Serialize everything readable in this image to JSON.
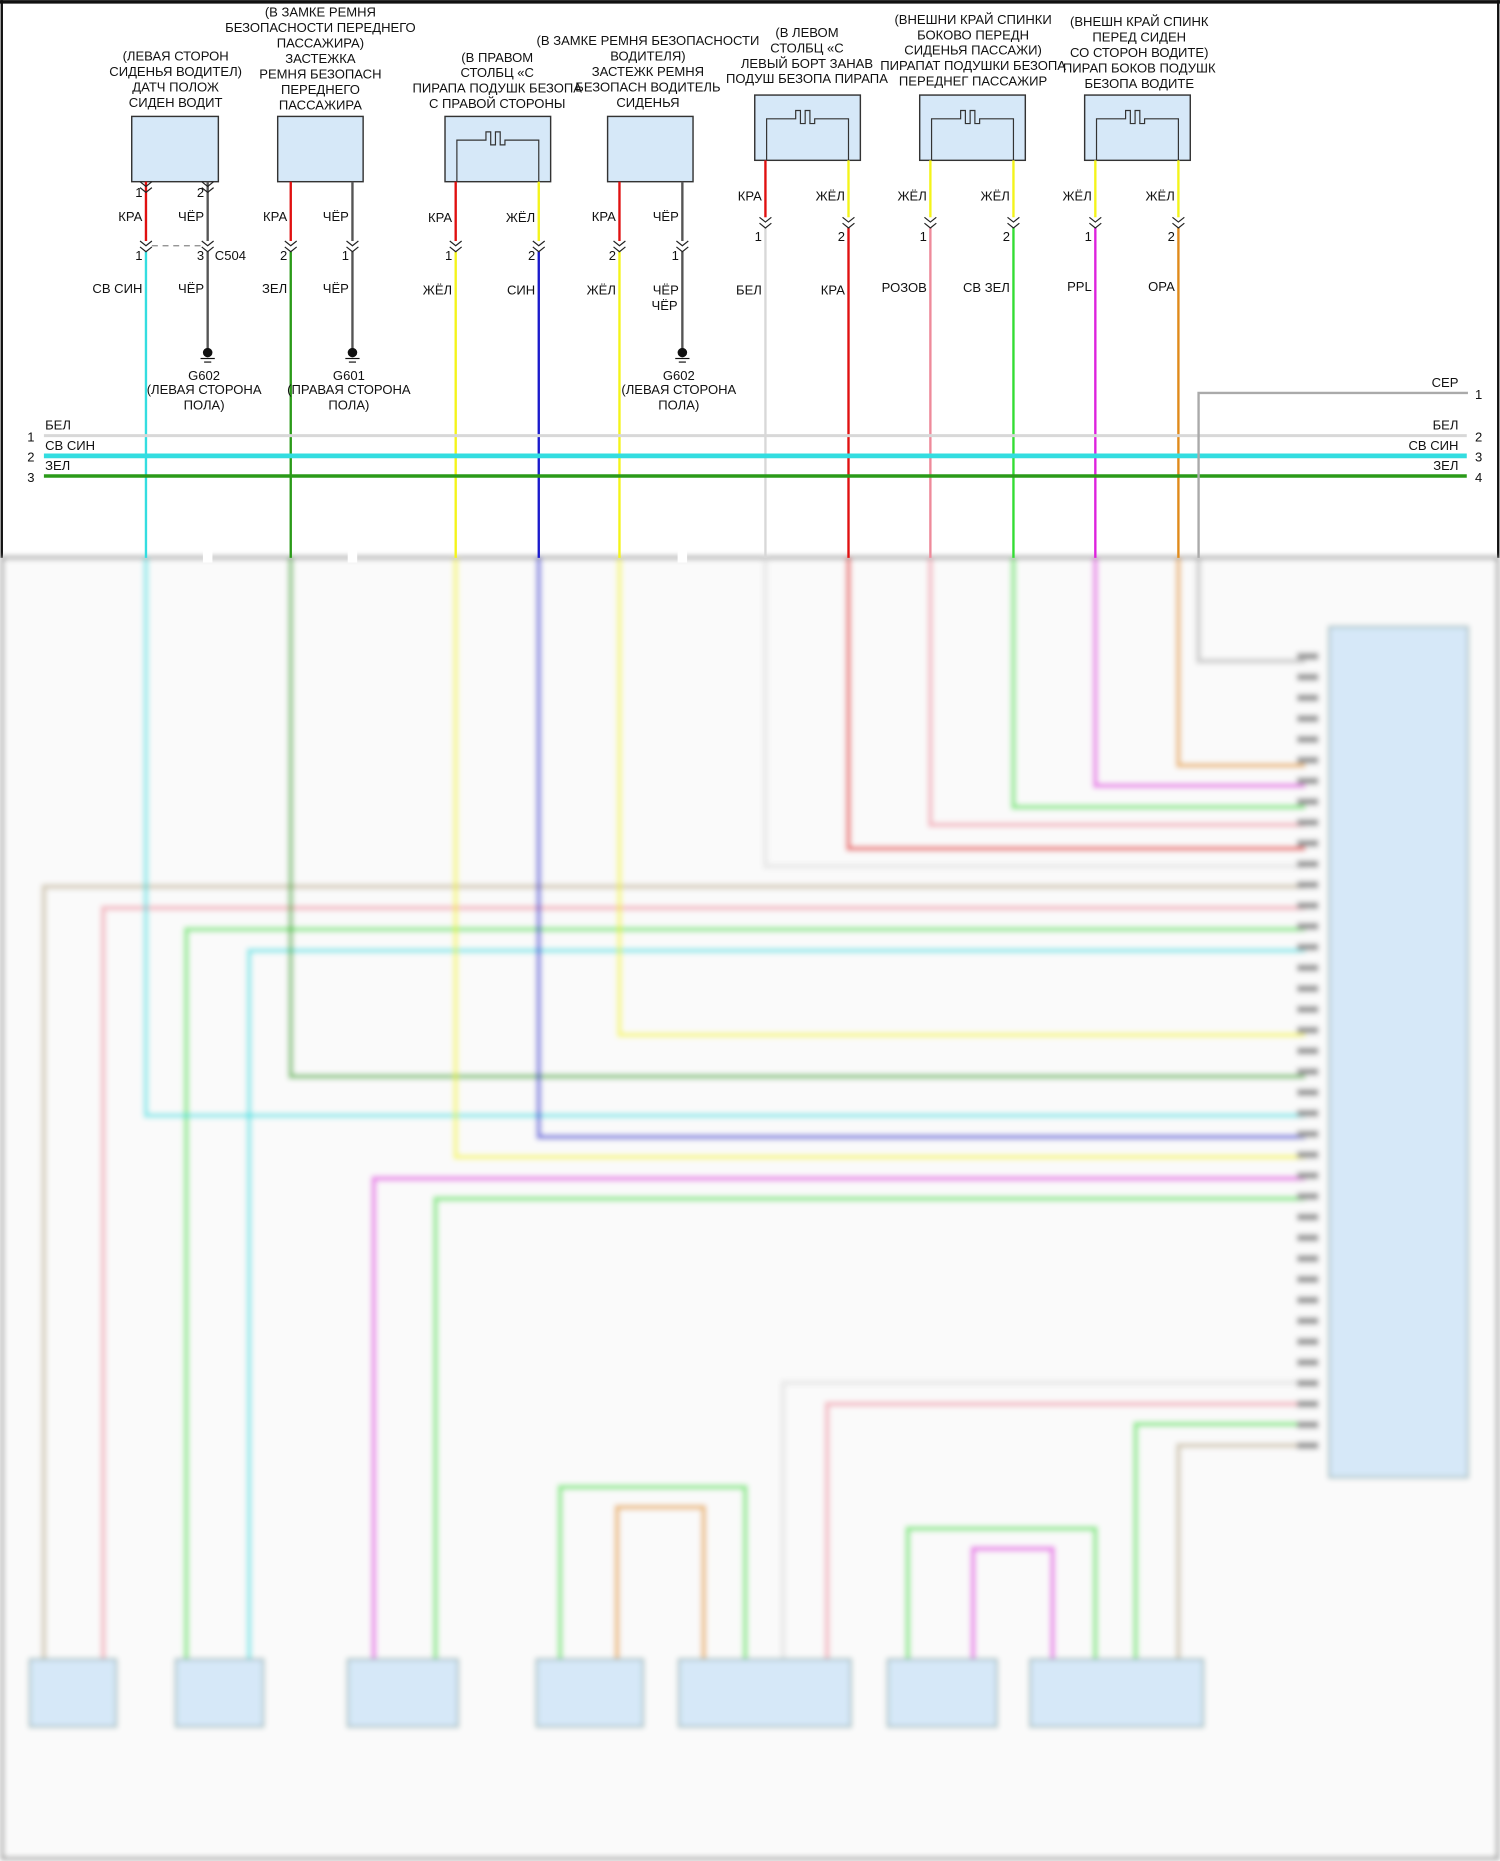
{
  "colors": {
    "КРА": "#e01010",
    "ЧЁР": "#555555",
    "СВ СИН": "#33dde0",
    "ЗЕЛ": "#2a9a18",
    "ЖЁЛ": "#f4f41a",
    "СИН": "#1a1acc",
    "БЕЛ": "#d8d8d8",
    "РОЗОВ": "#ee8a9a",
    "СВ ЗЕЛ": "#33dd33",
    "PPL": "#dd22dd",
    "ОРА": "#e08a1a",
    "СЕР": "#aaaaaa",
    "component_fill": "#d6e8f8",
    "tan": "#b8a888"
  },
  "components": [
    {
      "label": [
        "(ЛЕВАЯ СТОРОН",
        "СИДЕНЬЯ ВОДИТЕЛ)",
        "ДАТЧ ПОЛОЖ",
        "СИДЕН ВОДИТ"
      ],
      "icon": "sensor-box-icon",
      "pins": [
        {
          "top_num": "1",
          "top_wire": "КРА",
          "bottom_num": "1",
          "bottom_wire": "СВ СИН"
        },
        {
          "top_num": "2",
          "top_wire": "ЧЁР",
          "bottom_num": "3",
          "bottom_wire": "ЧЁР"
        }
      ],
      "connector": "C504"
    },
    {
      "label": [
        "(В ЗАМКЕ РЕМНЯ",
        "БЕЗОПАСНОСТИ ПЕРЕДНЕГО",
        "ПАССАЖИРА)",
        "ЗАСТЕЖКА",
        "РЕМНЯ БЕЗОПАСН",
        "ПЕРЕДНЕГО",
        "ПАССАЖИРА"
      ],
      "icon": "buckle-switch-icon",
      "pins": [
        {
          "top_num": "",
          "top_wire": "КРА",
          "bottom_num": "2",
          "bottom_wire": "ЗЕЛ"
        },
        {
          "top_num": "",
          "top_wire": "ЧЁР",
          "bottom_num": "1",
          "bottom_wire": "ЧЁР"
        }
      ]
    },
    {
      "label": [
        "(В ПРАВОМ",
        "СТОЛБЦ «С",
        "ПИРАПА ПОДУШК БЕЗОПА",
        "С ПРАВОЙ СТОРОНЫ"
      ],
      "icon": "squib-icon",
      "pins": [
        {
          "top_num": "",
          "top_wire": "КРА",
          "bottom_num": "1",
          "bottom_wire": "ЖЁЛ"
        },
        {
          "top_num": "",
          "top_wire": "ЖЁЛ",
          "bottom_num": "2",
          "bottom_wire": "СИН"
        }
      ]
    },
    {
      "label": [
        "(В ЗАМКЕ РЕМНЯ БЕЗОПАСНОСТИ",
        "ВОДИТЕЛЯ)",
        "ЗАСТЕЖК РЕМНЯ",
        "БЕЗОПАСН ВОДИТЕЛЬ",
        "СИДЕНЬЯ"
      ],
      "icon": "buckle-switch-icon",
      "pins": [
        {
          "top_num": "",
          "top_wire": "КРА",
          "bottom_num": "2",
          "bottom_wire": "ЖЁЛ"
        },
        {
          "top_num": "",
          "top_wire": "ЧЁР",
          "bottom_num": "1",
          "bottom_wire": "ЧЁР"
        }
      ]
    },
    {
      "label": [
        "(В ЛЕВОМ",
        "СТОЛБЦ «С",
        "ЛЕВЫЙ БОРТ ЗАНАВ",
        "ПОДУШ БЕЗОПА ПИРАПА"
      ],
      "icon": "squib-icon",
      "pins": [
        {
          "top_num": "",
          "top_wire": "КРА",
          "bottom_num": "1",
          "bottom_wire": "БЕЛ"
        },
        {
          "top_num": "",
          "top_wire": "ЖЁЛ",
          "bottom_num": "2",
          "bottom_wire": "КРА"
        }
      ]
    },
    {
      "label": [
        "(ВНЕШНИ КРАЙ СПИНКИ",
        "БОКОВО ПЕРЕДН",
        "СИДЕНЬЯ ПАССАЖИ)",
        "ПИРАПАТ ПОДУШКИ БЕЗОПА",
        "ПЕРЕДНЕГ ПАССАЖИР"
      ],
      "icon": "squib-icon",
      "pins": [
        {
          "top_num": "",
          "top_wire": "ЖЁЛ",
          "bottom_num": "1",
          "bottom_wire": "РОЗОВ"
        },
        {
          "top_num": "",
          "top_wire": "ЖЁЛ",
          "bottom_num": "2",
          "bottom_wire": "СВ ЗЕЛ"
        }
      ]
    },
    {
      "label": [
        "(ВНЕШН КРАЙ СПИНК",
        "ПЕРЕД СИДЕН",
        "СО СТОРОН ВОДИТЕ)",
        "ПИРАП БОКОВ ПОДУШК",
        "БЕЗОПА ВОДИТЕ"
      ],
      "icon": "squib-icon",
      "pins": [
        {
          "top_num": "",
          "top_wire": "ЖЁЛ",
          "bottom_num": "1",
          "bottom_wire": "PPL"
        },
        {
          "top_num": "",
          "top_wire": "ЖЁЛ",
          "bottom_num": "2",
          "bottom_wire": "ОРА"
        }
      ]
    }
  ],
  "grounds": [
    {
      "name": "G602",
      "label": [
        "(ЛЕВАЯ СТОРОНА",
        "ПОЛА)"
      ]
    },
    {
      "name": "G601",
      "label": [
        "(ПРАВАЯ СТОРОНА",
        "ПОЛА)"
      ]
    },
    {
      "name": "G602",
      "label": [
        "(ЛЕВАЯ СТОРОНА",
        "ПОЛА)"
      ]
    }
  ],
  "bus_left": [
    {
      "num": "1",
      "wire": "БЕЛ"
    },
    {
      "num": "2",
      "wire": "СВ СИН"
    },
    {
      "num": "3",
      "wire": "ЗЕЛ"
    }
  ],
  "bus_right": [
    {
      "num": "1",
      "wire": "СЕР"
    },
    {
      "num": "2",
      "wire": "БЕЛ"
    },
    {
      "num": "3",
      "wire": "СВ СИН"
    },
    {
      "num": "4",
      "wire": "ЗЕЛ"
    }
  ]
}
